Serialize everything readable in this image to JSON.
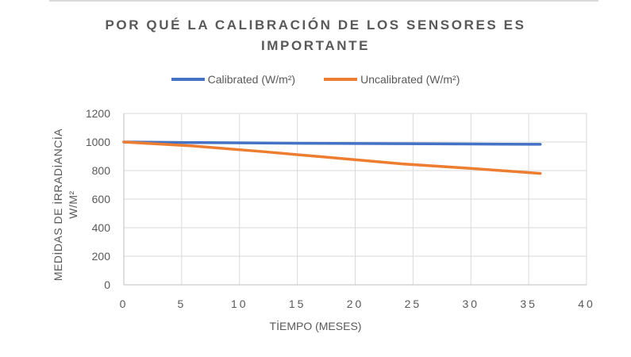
{
  "chart_data": {
    "type": "line",
    "title_lines": [
      "POR QUÉ LA CALIBRACIÓN DE LOS SENSORES ES",
      "IMPORTANTE"
    ],
    "xlabel": "TİEMPO (MESES)",
    "ylabel_lines": [
      "MEDİDAS DE İRRADİANCİA",
      "W/M²"
    ],
    "x": [
      0,
      6,
      12,
      18,
      24,
      30,
      36
    ],
    "series": [
      {
        "name": "Calibrated (W/m²)",
        "color": "#4472c4",
        "values": [
          1000,
          996,
          993,
          990,
          988,
          986,
          984
        ]
      },
      {
        "name": "Uncalibrated (W/m²)",
        "color": "#ed7d31",
        "values": [
          1000,
          972,
          933,
          890,
          847,
          815,
          780
        ]
      }
    ],
    "xlim": [
      0,
      40
    ],
    "ylim": [
      0,
      1200
    ],
    "xticks": [
      0,
      5,
      10,
      15,
      20,
      25,
      30,
      35,
      40
    ],
    "yticks": [
      0,
      200,
      400,
      600,
      800,
      1000,
      1200
    ],
    "grid": true,
    "legend_position": "top"
  }
}
